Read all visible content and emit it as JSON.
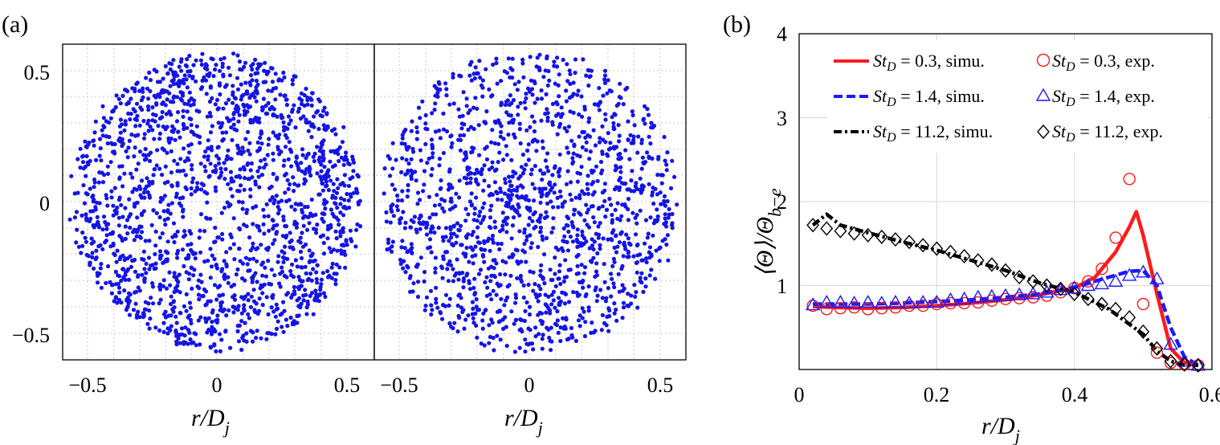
{
  "panels": {
    "a": {
      "label": "(a)",
      "xlabel_main": "r/D",
      "xlabel_sub": "j",
      "x_ticks": [
        "−0.5",
        "0",
        "0.5"
      ],
      "y_ticks": [
        "0.5",
        "0",
        "−0.5"
      ]
    },
    "b": {
      "label": "(b)",
      "xlabel_main": "r/D",
      "xlabel_sub": "j",
      "ylabel_main": "⟨Θ⟩/Θ",
      "ylabel_sub": "b−e",
      "x_ticks": [
        "0",
        "0.2",
        "0.4",
        "0.6"
      ],
      "y_ticks": [
        "4",
        "3",
        "2",
        "1"
      ]
    }
  },
  "legend": [
    {
      "st": "St",
      "sub": "D",
      "text": " = 0.3, simu."
    },
    {
      "st": "St",
      "sub": "D",
      "text": " = 0.3, exp."
    },
    {
      "st": "St",
      "sub": "D",
      "text": " = 1.4, simu."
    },
    {
      "st": "St",
      "sub": "D",
      "text": " = 1.4, exp."
    },
    {
      "st": "St",
      "sub": "D",
      "text": " = 11.2, simu."
    },
    {
      "st": "St",
      "sub": "D",
      "text": " = 11.2, exp."
    }
  ],
  "colors": {
    "red": "#ff1a1a",
    "blue": "#1a1aff",
    "black": "#000000",
    "scatter": "#1414e6"
  },
  "chart_data": [
    {
      "type": "scatter",
      "panel": "a-left",
      "description_points": "~1800 uniformly scattered blue particles in a disk of radius ~0.55 centred at origin",
      "xlim": [
        -0.6,
        0.55
      ],
      "ylim": [
        -0.55,
        0.6
      ],
      "xticks": [
        -0.5,
        0,
        0.5
      ],
      "yticks": [
        -0.5,
        0,
        0.5
      ],
      "grid": true
    },
    {
      "type": "scatter",
      "panel": "a-right",
      "description_points": "~1500 blue particles in a disk of radius ~0.55 centred at origin, denser near centre",
      "xlim": [
        -0.6,
        0.6
      ],
      "ylim": [
        -0.55,
        0.6
      ],
      "xticks": [
        -0.5,
        0,
        0.5
      ],
      "grid": true
    },
    {
      "type": "line",
      "panel": "b",
      "xlabel": "r/Dj",
      "ylabel": "⟨Θ⟩/Θb−e",
      "xlim": [
        0,
        0.6
      ],
      "ylim": [
        0,
        4
      ],
      "grid": true,
      "legend_position": "top",
      "series": [
        {
          "name": "StD = 0.3, simu.",
          "style": "solid",
          "color": "#ff1a1a",
          "x": [
            0.02,
            0.05,
            0.1,
            0.15,
            0.2,
            0.25,
            0.3,
            0.35,
            0.4,
            0.43,
            0.46,
            0.48,
            0.49,
            0.5,
            0.52,
            0.54,
            0.56,
            0.58
          ],
          "y": [
            0.75,
            0.74,
            0.73,
            0.74,
            0.76,
            0.79,
            0.83,
            0.89,
            0.97,
            1.1,
            1.4,
            1.7,
            1.88,
            1.6,
            0.9,
            0.25,
            0.08,
            0.05
          ]
        },
        {
          "name": "StD = 0.3, exp.",
          "marker": "circle",
          "color": "#ff1a1a",
          "x": [
            0.02,
            0.04,
            0.06,
            0.08,
            0.1,
            0.12,
            0.14,
            0.16,
            0.18,
            0.2,
            0.22,
            0.24,
            0.26,
            0.28,
            0.3,
            0.32,
            0.34,
            0.36,
            0.38,
            0.4,
            0.42,
            0.44,
            0.46,
            0.48,
            0.5,
            0.52,
            0.54,
            0.56,
            0.58
          ],
          "y": [
            0.76,
            0.72,
            0.73,
            0.74,
            0.72,
            0.73,
            0.74,
            0.76,
            0.76,
            0.78,
            0.79,
            0.79,
            0.8,
            0.82,
            0.84,
            0.85,
            0.86,
            0.88,
            0.92,
            0.97,
            1.05,
            1.2,
            1.57,
            2.27,
            0.78,
            0.2,
            0.08,
            0.06,
            0.05
          ]
        },
        {
          "name": "StD = 1.4, simu.",
          "style": "dashed",
          "color": "#1a1aff",
          "x": [
            0.02,
            0.05,
            0.1,
            0.15,
            0.2,
            0.25,
            0.3,
            0.35,
            0.4,
            0.45,
            0.48,
            0.5,
            0.52,
            0.54,
            0.56,
            0.58
          ],
          "y": [
            0.78,
            0.78,
            0.78,
            0.79,
            0.81,
            0.83,
            0.86,
            0.9,
            0.98,
            1.1,
            1.17,
            1.18,
            1.0,
            0.5,
            0.15,
            0.05
          ]
        },
        {
          "name": "StD = 1.4, exp.",
          "marker": "triangle",
          "color": "#1a1aff",
          "x": [
            0.02,
            0.04,
            0.06,
            0.08,
            0.1,
            0.12,
            0.14,
            0.16,
            0.18,
            0.2,
            0.22,
            0.24,
            0.26,
            0.28,
            0.3,
            0.32,
            0.34,
            0.36,
            0.38,
            0.4,
            0.42,
            0.44,
            0.46,
            0.48,
            0.5,
            0.52,
            0.54,
            0.56,
            0.58
          ],
          "y": [
            0.77,
            0.8,
            0.8,
            0.79,
            0.8,
            0.79,
            0.8,
            0.79,
            0.8,
            0.8,
            0.83,
            0.84,
            0.86,
            0.87,
            0.88,
            0.89,
            0.9,
            0.92,
            0.95,
            0.97,
            1.0,
            1.02,
            1.05,
            1.12,
            1.16,
            1.08,
            0.3,
            0.1,
            0.05
          ]
        },
        {
          "name": "StD = 11.2, simu.",
          "style": "dashdot",
          "color": "#000000",
          "x": [
            0.02,
            0.04,
            0.06,
            0.1,
            0.15,
            0.2,
            0.25,
            0.3,
            0.35,
            0.4,
            0.45,
            0.5,
            0.52,
            0.54,
            0.56,
            0.58
          ],
          "y": [
            1.72,
            1.85,
            1.72,
            1.63,
            1.52,
            1.42,
            1.3,
            1.18,
            1.03,
            0.92,
            0.72,
            0.42,
            0.22,
            0.1,
            0.05,
            0.05
          ]
        },
        {
          "name": "StD = 11.2, exp.",
          "marker": "diamond",
          "color": "#000000",
          "x": [
            0.02,
            0.04,
            0.06,
            0.08,
            0.1,
            0.12,
            0.14,
            0.16,
            0.18,
            0.2,
            0.22,
            0.24,
            0.26,
            0.28,
            0.3,
            0.32,
            0.34,
            0.36,
            0.38,
            0.4,
            0.42,
            0.44,
            0.46,
            0.48,
            0.5,
            0.52,
            0.54,
            0.56,
            0.58
          ],
          "y": [
            1.72,
            1.68,
            1.65,
            1.62,
            1.6,
            1.58,
            1.55,
            1.52,
            1.48,
            1.44,
            1.4,
            1.35,
            1.3,
            1.25,
            1.18,
            1.1,
            1.05,
            1.0,
            0.96,
            0.9,
            0.84,
            0.78,
            0.72,
            0.62,
            0.45,
            0.25,
            0.1,
            0.06,
            0.05
          ]
        }
      ]
    }
  ]
}
